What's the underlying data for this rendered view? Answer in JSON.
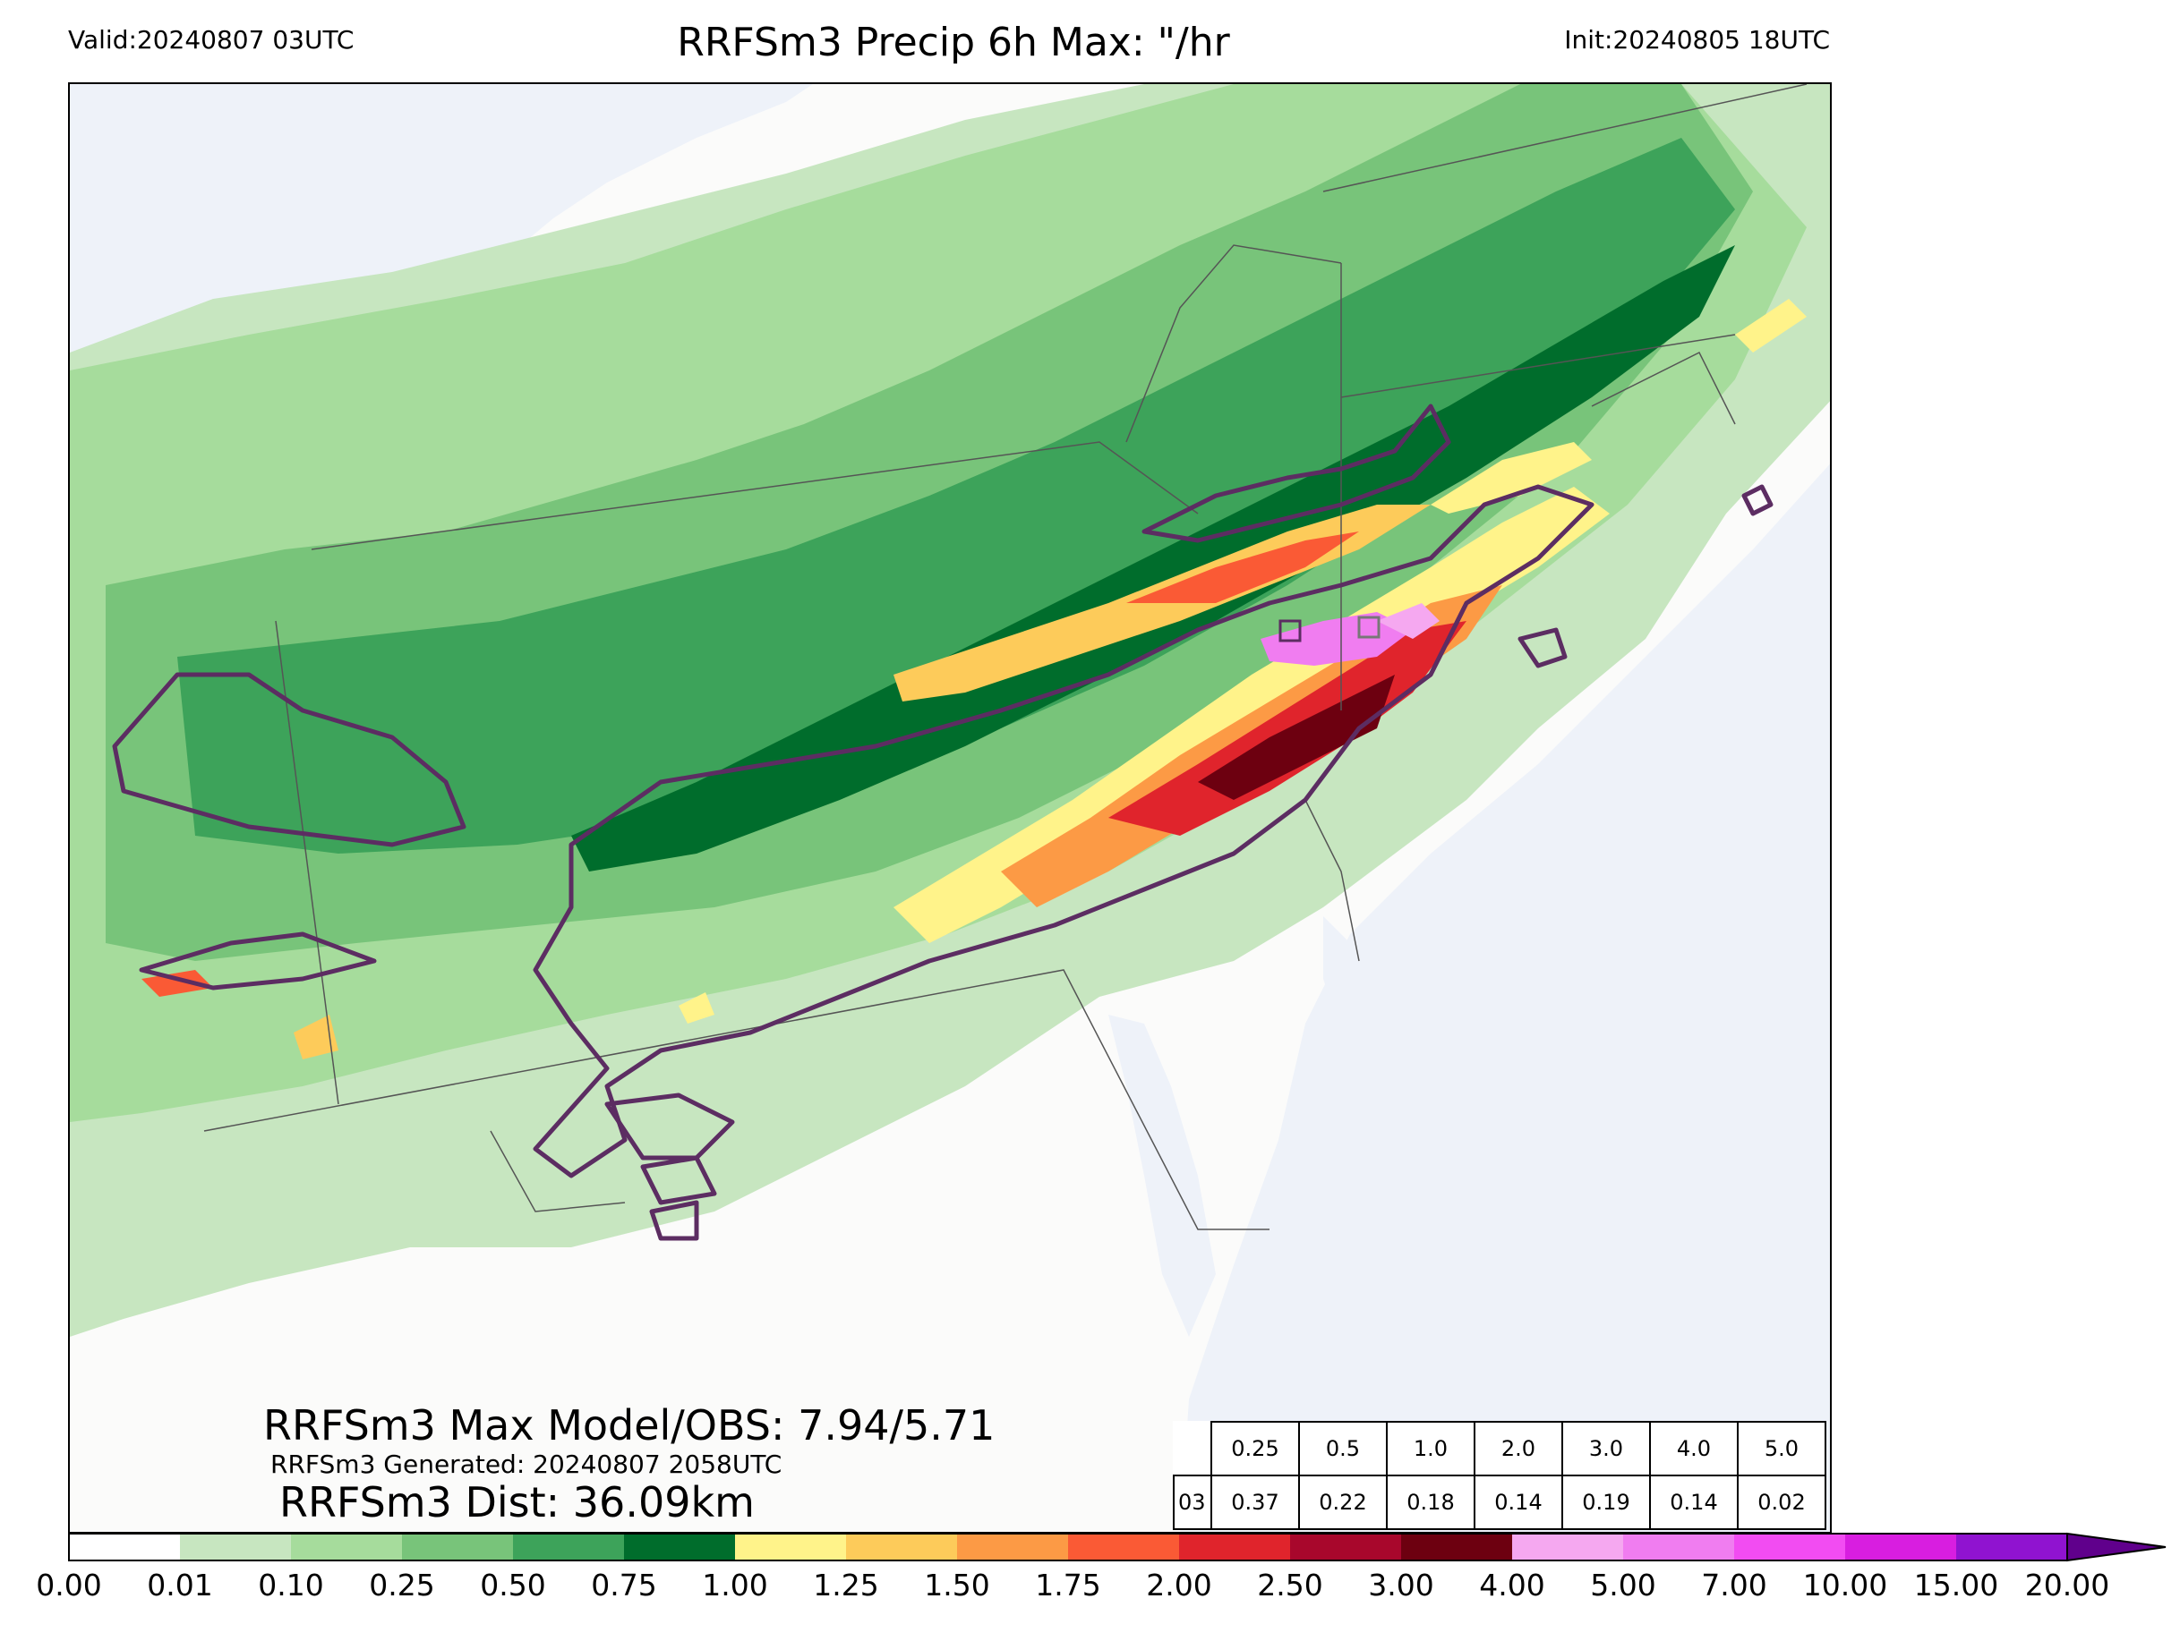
{
  "header": {
    "valid": "Valid:20240807 03UTC",
    "title": "RRFSm3 Precip 6h Max: \"/hr",
    "init": "Init:20240805 18UTC"
  },
  "annotations": {
    "max_model_obs": "RRFSm3 Max Model/OBS: 7.94/5.71",
    "generated": "RRFSm3 Generated: 20240807 2058UTC",
    "distance": "RRFSm3 Dist: 36.09km"
  },
  "threshold_table": {
    "thresholds": [
      "0.25",
      "0.5",
      "1.0",
      "2.0",
      "3.0",
      "4.0",
      "5.0"
    ],
    "row_label": "03",
    "values": [
      "0.37",
      "0.22",
      "0.18",
      "0.14",
      "0.19",
      "0.14",
      "0.02"
    ]
  },
  "colorbar": {
    "ticks": [
      "0.00",
      "0.01",
      "0.10",
      "0.25",
      "0.50",
      "0.75",
      "1.00",
      "1.25",
      "1.50",
      "1.75",
      "2.00",
      "2.50",
      "3.00",
      "4.00",
      "5.00",
      "7.00",
      "10.00",
      "15.00",
      "20.00"
    ],
    "colors": [
      "#ffffff",
      "#c7e6c0",
      "#a6dc9c",
      "#78c47a",
      "#3da35a",
      "#006d2c",
      "#fff38a",
      "#fdcb5a",
      "#fc9a45",
      "#fa5a35",
      "#e0242c",
      "#a8072c",
      "#6d0010",
      "#f5a8f0",
      "#f07df0",
      "#f24cf2",
      "#d81ee0",
      "#9013d0"
    ],
    "extend_color": "#60008c"
  },
  "map_colors": {
    "water": "#eef2f9",
    "land": "#fbfbfa",
    "obs_contour": "#5c2d62",
    "borders": "#555555"
  }
}
